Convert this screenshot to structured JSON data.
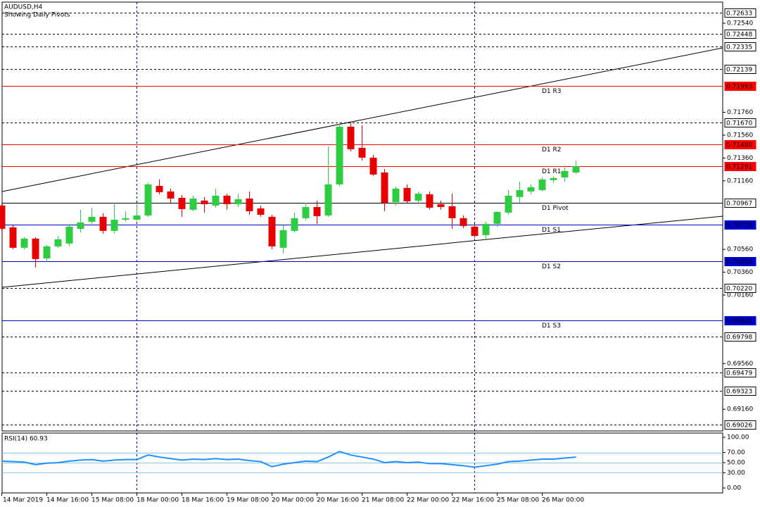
{
  "chart_data": [
    {
      "type": "candlestick",
      "title": "AUDUSD,H4",
      "subtitle": "Showing Daily Pivots",
      "categories": [
        "14 Mar 2019",
        null,
        null,
        null,
        "14 Mar 16:00",
        null,
        null,
        null,
        "15 Mar 08:00",
        null,
        null,
        null,
        "18 Mar 00:00",
        null,
        null,
        null,
        "18 Mar 16:00",
        null,
        null,
        null,
        "19 Mar 08:00",
        null,
        null,
        null,
        "20 Mar 00:00",
        null,
        null,
        null,
        "20 Mar 16:00",
        null,
        null,
        null,
        "21 Mar 08:00",
        null,
        null,
        null,
        "22 Mar 00:00",
        null,
        null,
        null,
        "22 Mar 16:00",
        null,
        null,
        null,
        "25 Mar 08:00",
        null,
        null,
        null,
        "26 Mar 00:00",
        null,
        null,
        null
      ],
      "open": [
        0.70944,
        0.70752,
        0.70574,
        0.70654,
        0.70481,
        0.70586,
        0.70611,
        0.7074,
        0.70802,
        0.70845,
        0.70722,
        0.7082,
        0.7082,
        0.70857,
        0.71116,
        0.71067,
        0.71011,
        0.70907,
        0.70987,
        0.70944,
        0.7103,
        0.70956,
        0.71005,
        0.70919,
        0.70845,
        0.70574,
        0.70722,
        0.70833,
        0.70931,
        0.70857,
        0.71129,
        0.71634,
        0.71449,
        0.71363,
        0.71233,
        0.70974,
        0.71098,
        0.70987,
        0.71042,
        0.70956,
        0.70937,
        0.70833,
        0.70759,
        0.70685,
        0.70783,
        0.70882,
        0.71018,
        0.71067,
        0.71079,
        0.71166,
        0.7119,
        0.71233
      ],
      "high": [
        0.70956,
        0.70771,
        0.70666,
        0.70666,
        0.70598,
        0.70678,
        0.70783,
        0.70907,
        0.70925,
        0.70876,
        0.70956,
        0.70894,
        0.70956,
        0.71141,
        0.71172,
        0.71092,
        0.71036,
        0.7103,
        0.71018,
        0.71092,
        0.71048,
        0.71048,
        0.71067,
        0.70944,
        0.70863,
        0.70771,
        0.70882,
        0.70968,
        0.70987,
        0.71461,
        0.71665,
        0.71665,
        0.71646,
        0.71387,
        0.71264,
        0.7111,
        0.71129,
        0.71067,
        0.71067,
        0.70987,
        0.71048,
        0.70857,
        0.70783,
        0.70802,
        0.70894,
        0.71079,
        0.71153,
        0.71129,
        0.7119,
        0.71202,
        0.71276,
        0.71338
      ],
      "low": [
        0.70728,
        0.70561,
        0.70561,
        0.70401,
        0.7045,
        0.70574,
        0.70586,
        0.70709,
        0.70783,
        0.70697,
        0.70697,
        0.70802,
        0.70808,
        0.70845,
        0.71042,
        0.70968,
        0.70845,
        0.70894,
        0.70882,
        0.70925,
        0.70907,
        0.70931,
        0.70863,
        0.70845,
        0.70561,
        0.70524,
        0.70709,
        0.70814,
        0.70783,
        0.70845,
        0.7111,
        0.71418,
        0.71338,
        0.71202,
        0.70894,
        0.70944,
        0.70968,
        0.70956,
        0.70907,
        0.70907,
        0.7074,
        0.70746,
        0.7066,
        0.70648,
        0.70759,
        0.70863,
        0.70956,
        0.71042,
        0.71067,
        0.71141,
        0.71153,
        0.71221
      ],
      "close": [
        0.7074,
        0.70574,
        0.70654,
        0.70475,
        0.70586,
        0.70648,
        0.70759,
        0.70796,
        0.70845,
        0.70722,
        0.7082,
        0.70833,
        0.70857,
        0.71129,
        0.71061,
        0.71005,
        0.70913,
        0.71005,
        0.70956,
        0.7103,
        0.70956,
        0.70999,
        0.70894,
        0.70863,
        0.70586,
        0.70728,
        0.70833,
        0.70931,
        0.70851,
        0.71129,
        0.71634,
        0.71437,
        0.71363,
        0.71215,
        0.70968,
        0.71092,
        0.70981,
        0.71048,
        0.70925,
        0.70931,
        0.70833,
        0.70765,
        0.70678,
        0.70783,
        0.70888,
        0.7103,
        0.71079,
        0.71104,
        0.71172,
        0.71184,
        0.71246,
        0.71289
      ],
      "up_color": "#2ecc40",
      "down_color": "#e60000",
      "ylim": [
        0.6897,
        0.72725
      ],
      "yticks": [
        {
          "value": 0.7254,
          "label": "0.72540"
        },
        {
          "value": 0.7176,
          "label": "0.71760"
        },
        {
          "value": 0.7156,
          "label": "0.71560"
        },
        {
          "value": 0.7136,
          "label": "0.71360"
        },
        {
          "value": 0.7116,
          "label": "0.71160"
        },
        {
          "value": 0.7056,
          "label": "0.70560"
        },
        {
          "value": 0.7036,
          "label": "0.70360"
        },
        {
          "value": 0.7016,
          "label": "0.70160"
        },
        {
          "value": 0.6956,
          "label": "0.69560"
        },
        {
          "value": 0.6916,
          "label": "0.69160"
        }
      ],
      "levels": [
        {
          "value": 0.72633,
          "color": "#000000",
          "style": "dashed"
        },
        {
          "value": 0.72448,
          "color": "#000000",
          "style": "dashed"
        },
        {
          "value": 0.72335,
          "color": "#000000",
          "style": "dashed"
        },
        {
          "value": 0.72139,
          "color": "#000000",
          "style": "dashed"
        },
        {
          "value": 0.71993,
          "name": "D1 R3",
          "color": "#ff0000",
          "style": "solid"
        },
        {
          "value": 0.7167,
          "label": "0.71670",
          "color": "#000000",
          "style": "dashed"
        },
        {
          "value": 0.7148,
          "label": "0.71480",
          "name": "D1 R2",
          "color": "#ff0000",
          "style": "solid"
        },
        {
          "value": 0.71291,
          "name": "D1 R1",
          "color": "#ff0000",
          "style": "solid"
        },
        {
          "value": 0.70967,
          "name": "D1 Pivot",
          "color": "#000000",
          "style": "solid"
        },
        {
          "value": 0.70778,
          "name": "D1 S1",
          "color": "#0000cc",
          "style": "solid"
        },
        {
          "value": 0.70454,
          "name": "D1 S2",
          "color": "#0000cc",
          "style": "solid"
        },
        {
          "value": 0.7022,
          "label": "0.70220",
          "color": "#000000",
          "style": "dashed"
        },
        {
          "value": 0.69941,
          "name": "D1 S3",
          "color": "#0000cc",
          "style": "solid"
        },
        {
          "value": 0.69798,
          "color": "#000000",
          "style": "dashed"
        },
        {
          "value": 0.69479,
          "color": "#000000",
          "style": "dashed"
        },
        {
          "value": 0.69323,
          "color": "#000000",
          "style": "dashed"
        },
        {
          "value": 0.69026,
          "color": "#000000",
          "style": "dashed"
        }
      ]
    },
    {
      "type": "line",
      "title": "RSI(14) 60.93",
      "color": "#1e90ff",
      "level_color": "#87c8ee",
      "values": [
        53,
        52,
        51,
        46,
        49,
        50,
        53,
        55,
        56,
        53,
        55,
        56,
        56,
        65,
        61,
        58,
        55,
        57,
        56,
        58,
        56,
        57,
        54,
        52,
        42,
        47,
        50,
        53,
        52,
        61,
        72,
        65,
        61,
        57,
        50,
        52,
        50,
        51,
        48,
        48,
        46,
        44,
        41,
        44,
        47,
        52,
        53,
        55,
        57,
        57,
        59,
        60.93
      ],
      "ylim": [
        -9.7,
        108.3
      ],
      "yticks": [
        {
          "value": 100,
          "label": "100.00"
        },
        {
          "value": 70,
          "label": "70.00"
        },
        {
          "value": 50,
          "label": "50.00"
        },
        {
          "value": 30,
          "label": "30.00"
        },
        {
          "value": 0,
          "label": "0.00"
        }
      ],
      "levels": [
        70,
        50,
        30
      ]
    }
  ]
}
